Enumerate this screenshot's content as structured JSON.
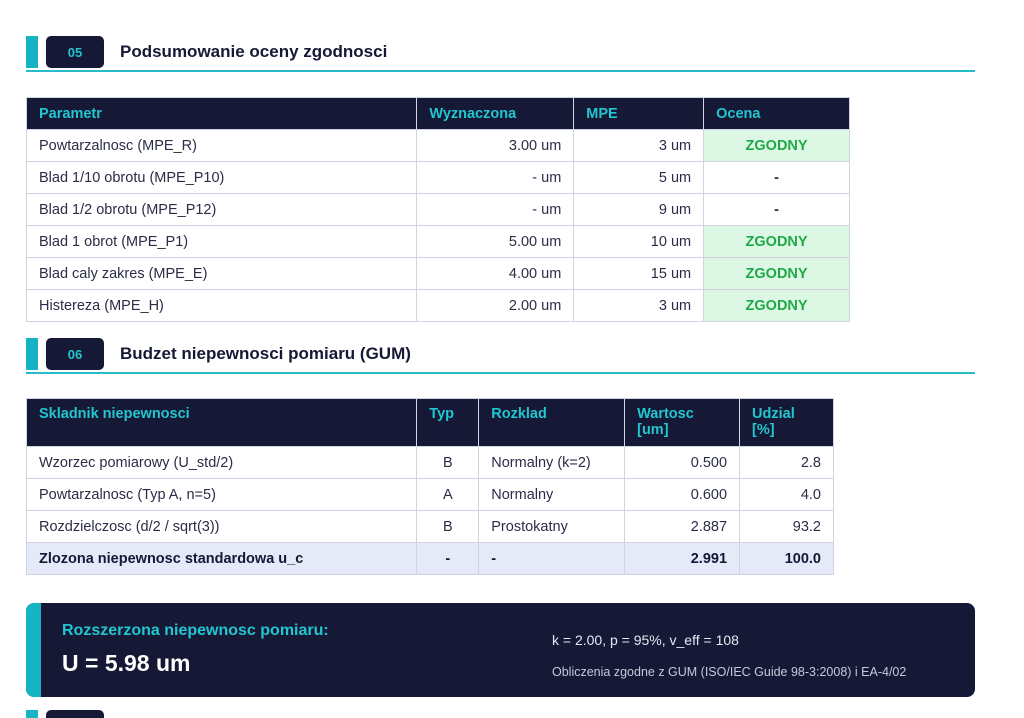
{
  "section5": {
    "number": "05",
    "title": "Podsumowanie oceny zgodnosci",
    "headers": [
      "Parametr",
      "Wyznaczona",
      "MPE",
      "Ocena"
    ],
    "rows": [
      [
        "Powtarzalnosc (MPE_R)",
        "3.00 um",
        "3 um",
        "ZGODNY"
      ],
      [
        "Blad 1/10 obrotu (MPE_P10)",
        "- um",
        "5 um",
        "-"
      ],
      [
        "Blad 1/2 obrotu (MPE_P12)",
        "- um",
        "9 um",
        "-"
      ],
      [
        "Blad 1 obrot (MPE_P1)",
        "5.00 um",
        "10 um",
        "ZGODNY"
      ],
      [
        "Blad caly zakres (MPE_E)",
        "4.00 um",
        "15 um",
        "ZGODNY"
      ],
      [
        "Histereza (MPE_H)",
        "2.00 um",
        "3 um",
        "ZGODNY"
      ]
    ]
  },
  "section6": {
    "number": "06",
    "title": "Budzet niepewnosci pomiaru (GUM)",
    "headers": [
      "Skladnik niepewnosci",
      "Typ",
      "Rozklad",
      "Wartosc [um]",
      "Udzial [%]"
    ],
    "rows": [
      [
        "Wzorzec pomiarowy (U_std/2)",
        "B",
        "Normalny (k=2)",
        "0.500",
        "2.8"
      ],
      [
        "Powtarzalnosc (Typ A, n=5)",
        "A",
        "Normalny",
        "0.600",
        "4.0"
      ],
      [
        "Rozdzielczosc (d/2 / sqrt(3))",
        "B",
        "Prostokatny",
        "2.887",
        "93.2"
      ]
    ],
    "total": [
      "Zlozona niepewnosc standardowa u_c",
      "-",
      "-",
      "2.991",
      "100.0"
    ]
  },
  "result": {
    "label": "Rozszerzona niepewnosc pomiaru:",
    "value": "U = 5.98 um",
    "params": "k = 2.00,  p = 95%,  v_eff = 108",
    "note": "Obliczenia zgodne z GUM (ISO/IEC Guide 98-3:2008) i EA-4/02"
  },
  "colors": {
    "navy": "#151935",
    "accent": "#15b3c4",
    "compliant_bg": "#dcf8e4",
    "compliant_text": "#1fa84a"
  }
}
